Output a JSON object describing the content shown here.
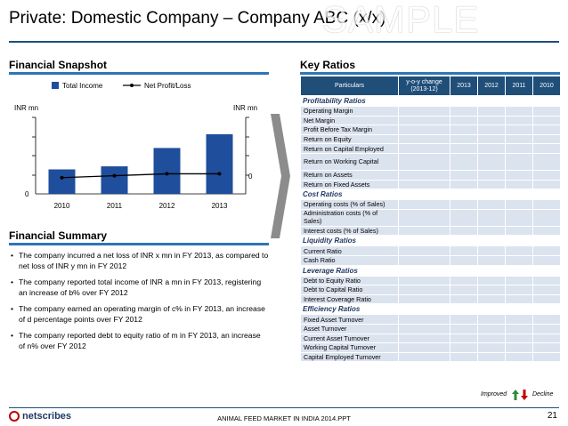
{
  "title": "Private: Domestic Company – Company ABC (x/x)",
  "watermark": "SAMPLE",
  "snapshot": {
    "title": "Financial Snapshot",
    "left_unit": "INR mn",
    "right_unit": "INR mn",
    "left_zero": "0",
    "right_zero": "0",
    "legend": {
      "bar": "Total Income",
      "line": "Net Profit/Loss"
    }
  },
  "chart_data": {
    "type": "bar",
    "title": "Financial Snapshot",
    "categories": [
      "2010",
      "2011",
      "2012",
      "2013"
    ],
    "series": [
      {
        "name": "Total Income",
        "type": "bar",
        "axis": "left",
        "values": [
          32,
          36,
          60,
          78
        ]
      },
      {
        "name": "Net Profit/Loss",
        "type": "line",
        "axis": "right",
        "values": [
          -3,
          -1,
          1,
          1
        ]
      }
    ],
    "ylabel": "INR mn",
    "y2label": "INR mn",
    "ylim": [
      0,
      100
    ],
    "y2lim": [
      -20,
      60
    ],
    "legend_position": "top"
  },
  "summary": {
    "title": "Financial Summary",
    "bullets": [
      "The company incurred a net loss of INR x mn in FY 2013, as compared to net loss of INR y mn in FY 2012",
      "The company reported total income of INR a mn in FY 2013, registering an increase of b% over FY 2012",
      "The company earned an operating margin of c% in FY 2013, an increase of d percentage points over FY 2012",
      "The company reported debt to equity ratio of m in FY 2013, an increase of n% over FY 2012"
    ]
  },
  "ratios": {
    "title": "Key Ratios",
    "headers": [
      "Particulars",
      "y-o-y change (2013-12)",
      "2013",
      "2012",
      "2011",
      "2010"
    ],
    "sections": [
      {
        "name": "Profitability Ratios",
        "rows": [
          "Operating Margin",
          "Net Margin",
          "Profit Before Tax Margin",
          "Return on Equity",
          "Return on Capital Employed",
          "Return on Working Capital",
          "Return on Assets",
          "Return on Fixed Assets"
        ]
      },
      {
        "name": "Cost Ratios",
        "rows": [
          "Operating costs (% of Sales)",
          "Administration costs (% of Sales)",
          "Interest costs (% of Sales)"
        ]
      },
      {
        "name": "Liquidity Ratios",
        "rows": [
          "Current Ratio",
          "Cash Ratio"
        ]
      },
      {
        "name": "Leverage Ratios",
        "rows": [
          "Debt to Equity Ratio",
          "Debt to Capital Ratio",
          "Interest Coverage Ratio"
        ]
      },
      {
        "name": "Efficiency Ratios",
        "rows": [
          "Fixed Asset Turnover",
          "Asset Turnover",
          "Current Asset Turnover",
          "Working Capital Turnover",
          "Capital Employed Turnover"
        ]
      }
    ],
    "improved": "Improved",
    "decline": "Decline"
  },
  "footer": {
    "logo": "netscribes",
    "center": "ANIMAL FEED MARKET IN INDIA 2014.PPT",
    "page": "21"
  },
  "colors": {
    "navy": "#1f4e79",
    "bar": "#1f4e9c",
    "cell": "#dbe3ef",
    "improved": "#2e8b3a",
    "decline": "#c00000"
  }
}
